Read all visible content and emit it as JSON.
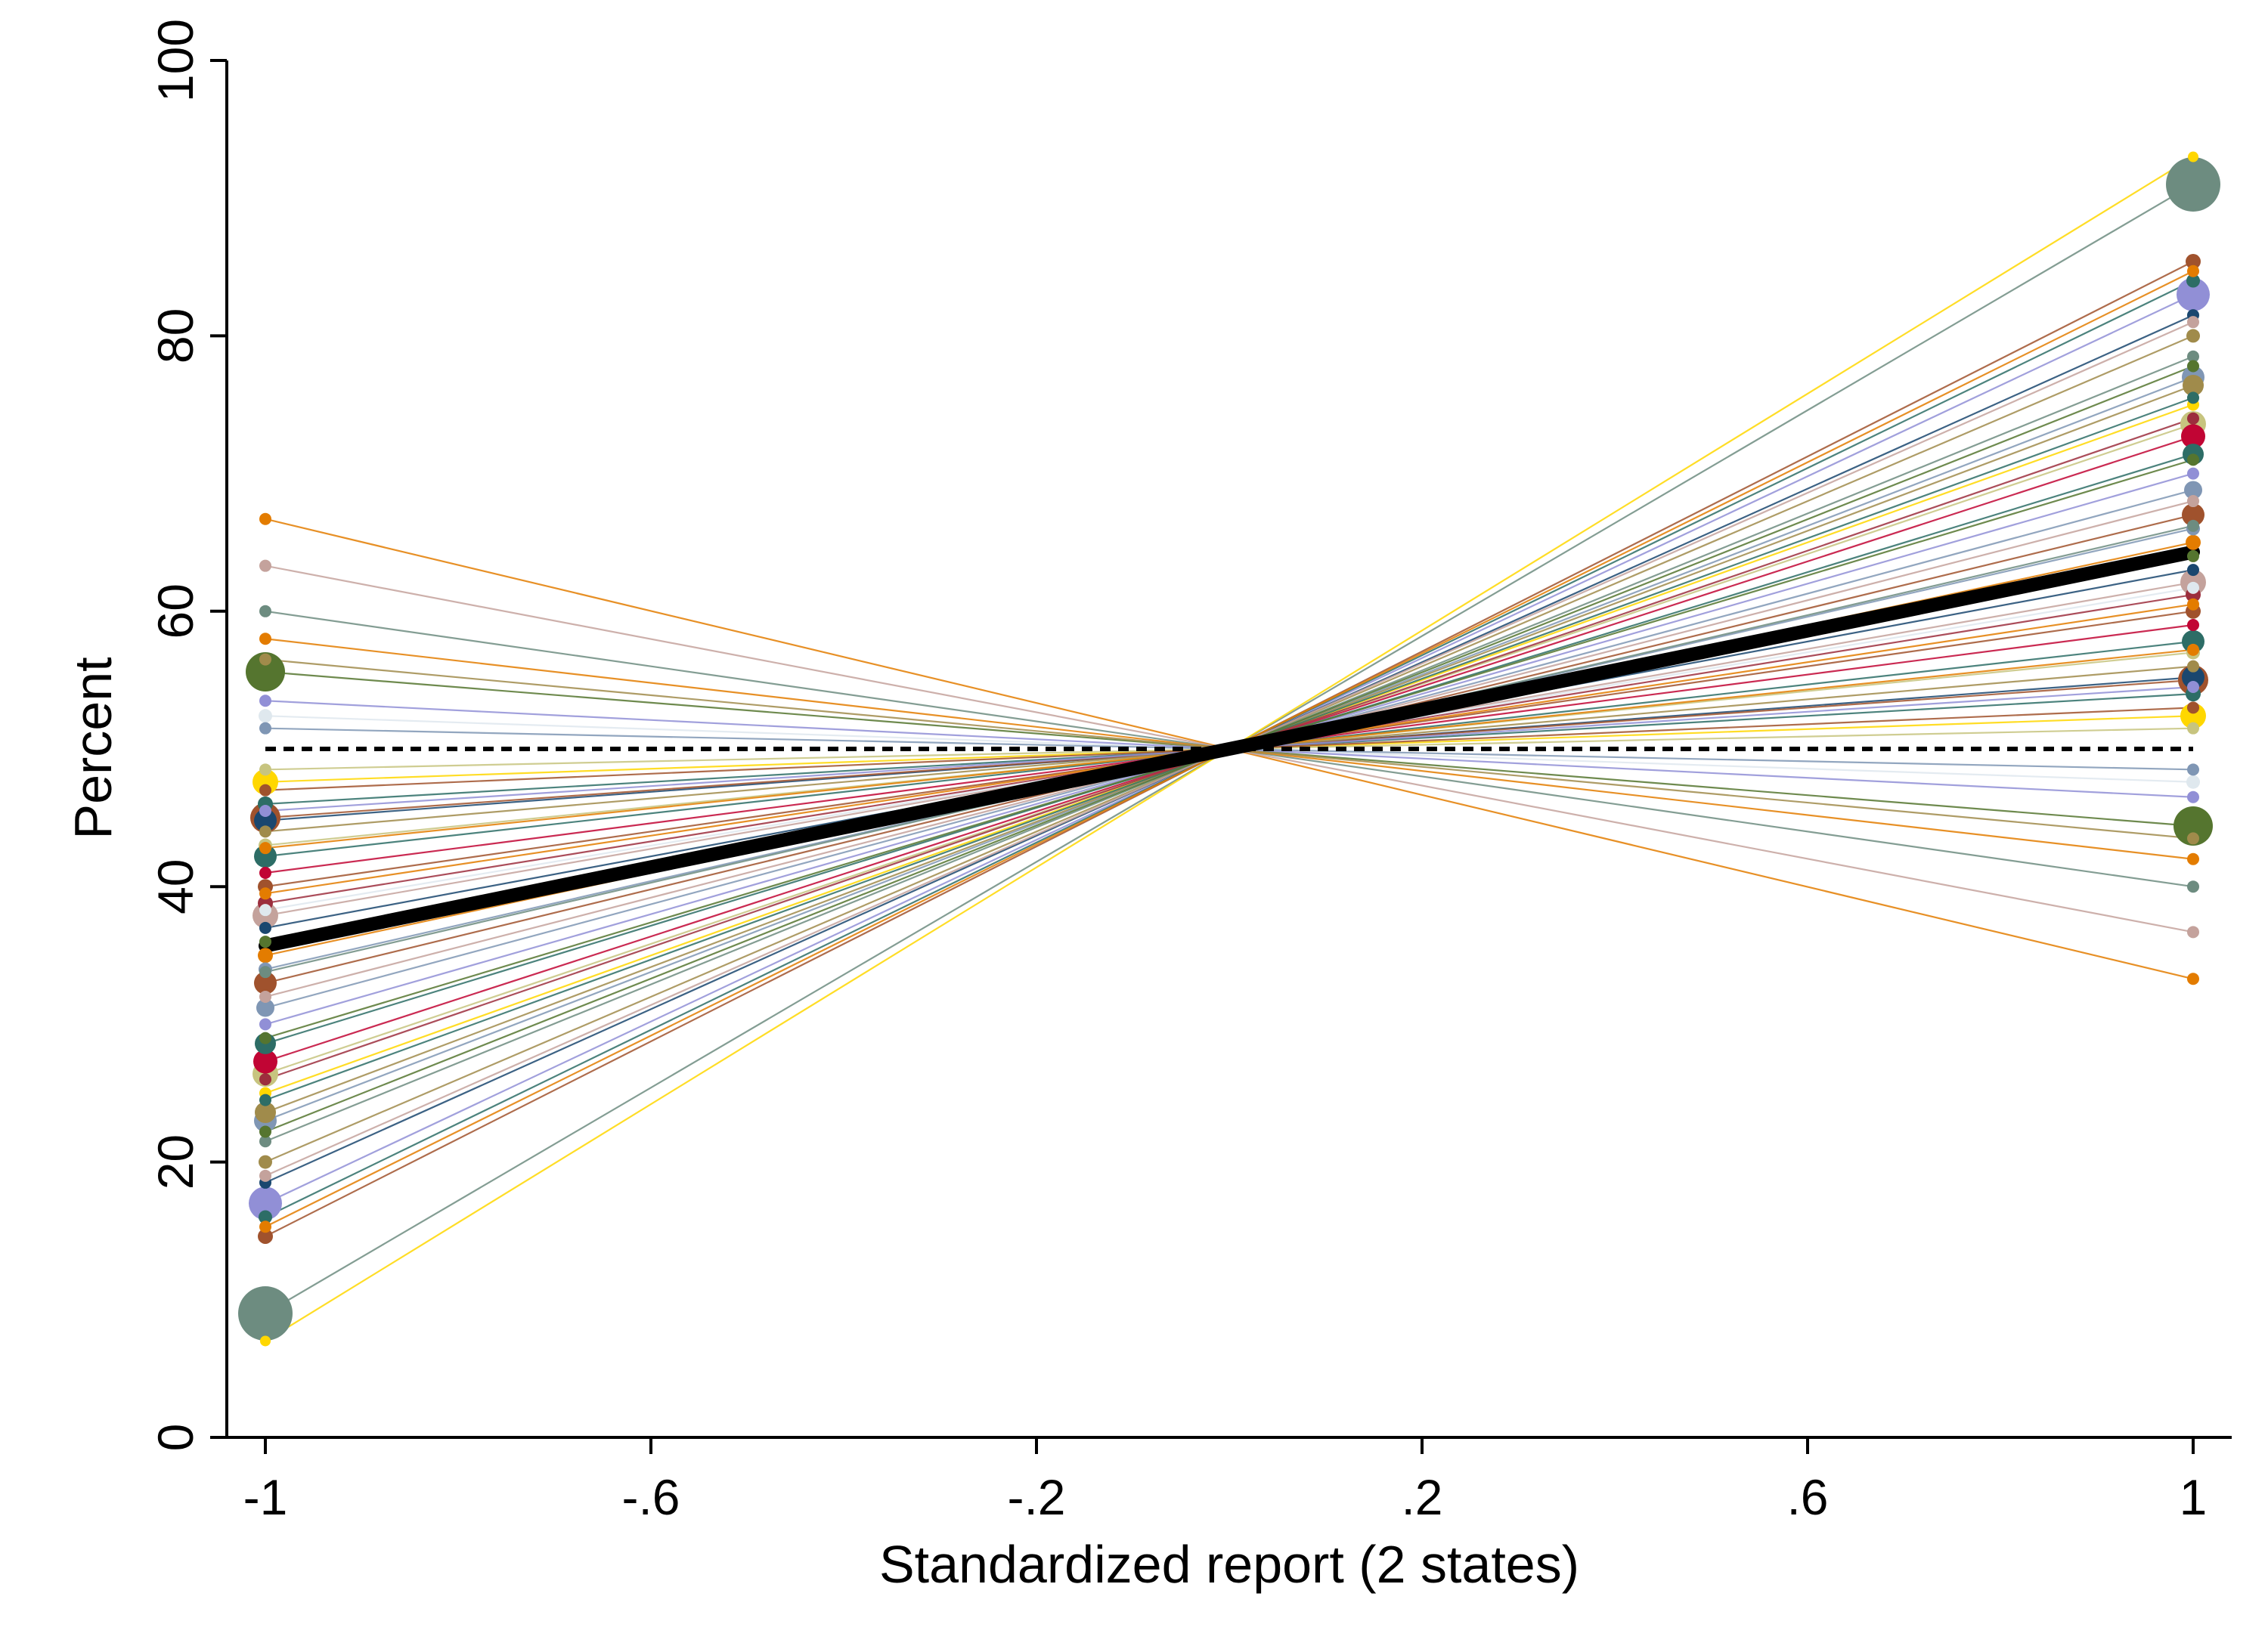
{
  "chart_data": {
    "type": "line",
    "title": "",
    "xlabel": "Standardized report (2 states)",
    "ylabel": "Percent",
    "xlim": [
      -1.04,
      1.04
    ],
    "ylim": [
      0,
      100
    ],
    "xticks": [
      -1,
      -0.6,
      -0.2,
      0.2,
      0.6,
      1
    ],
    "xtick_labels": [
      "-1",
      "-.6",
      "-.2",
      ".2",
      ".6",
      "1"
    ],
    "yticks": [
      0,
      20,
      40,
      60,
      80,
      100
    ],
    "ytick_labels": [
      "0",
      "20",
      "40",
      "60",
      "80",
      "100"
    ],
    "grid": false,
    "legend": "none",
    "x": [
      -1,
      1
    ],
    "reference_line": {
      "y": 50,
      "style": "dashed",
      "color": "#000000"
    },
    "mean_line": {
      "values": [
        35.7,
        64.3
      ],
      "color": "#000000"
    },
    "series": [
      {
        "values": [
          9.0,
          91.0
        ],
        "color": "#6d8c80",
        "size": 3.6
      },
      {
        "values": [
          55.6,
          44.4
        ],
        "color": "#55752f",
        "size": 2.6
      },
      {
        "values": [
          47.6,
          52.4
        ],
        "color": "#ffd700",
        "size": 1.7
      },
      {
        "values": [
          17.0,
          83.0
        ],
        "color": "#918fd6",
        "size": 2.2
      },
      {
        "values": [
          26.4,
          73.6
        ],
        "color": "#c7c47f",
        "size": 1.7
      },
      {
        "values": [
          27.3,
          72.7
        ],
        "color": "#c10534",
        "size": 1.6
      },
      {
        "values": [
          44.8,
          55.2
        ],
        "color": "#1a476f",
        "size": 1.5
      },
      {
        "values": [
          42.2,
          57.8
        ],
        "color": "#2d6d66",
        "size": 1.5
      },
      {
        "values": [
          45.0,
          55.0
        ],
        "color": "#a0522d",
        "size": 2.0
      },
      {
        "values": [
          37.9,
          62.1
        ],
        "color": "#c4a29c",
        "size": 1.7
      },
      {
        "values": [
          33.0,
          67.0
        ],
        "color": "#a0522d",
        "size": 1.5
      },
      {
        "values": [
          23.0,
          77.0
        ],
        "color": "#7f96b4",
        "size": 1.5
      },
      {
        "values": [
          23.6,
          76.4
        ],
        "color": "#a08b4b",
        "size": 1.4
      },
      {
        "values": [
          31.2,
          68.8
        ],
        "color": "#7f96b4",
        "size": 1.2
      },
      {
        "values": [
          28.6,
          71.4
        ],
        "color": "#2d6d66",
        "size": 1.4
      },
      {
        "values": [
          38.8,
          61.2
        ],
        "color": "#9c2e3d",
        "size": 1.0
      },
      {
        "values": [
          35.0,
          65.0
        ],
        "color": "#e37c00",
        "size": 1.0
      },
      {
        "values": [
          14.6,
          85.4
        ],
        "color": "#a0522d",
        "size": 1.0
      },
      {
        "values": [
          16.0,
          84.0
        ],
        "color": "#2d6d66",
        "size": 0.9
      },
      {
        "values": [
          20.0,
          80.0
        ],
        "color": "#a08b4b",
        "size": 0.9
      },
      {
        "values": [
          66.7,
          33.3
        ],
        "color": "#e37c00",
        "size": 0.8
      },
      {
        "values": [
          63.3,
          36.7
        ],
        "color": "#c4a29c",
        "size": 0.8
      },
      {
        "values": [
          60.0,
          40.0
        ],
        "color": "#6d8c80",
        "size": 0.8
      },
      {
        "values": [
          58.0,
          42.0
        ],
        "color": "#e37c00",
        "size": 0.8
      },
      {
        "values": [
          52.4,
          47.6
        ],
        "color": "#dfe8ee",
        "size": 0.9
      },
      {
        "values": [
          7.0,
          93.0
        ],
        "color": "#ffd700",
        "size": 0.7
      },
      {
        "values": [
          40.0,
          60.0
        ],
        "color": "#a0522d",
        "size": 1.0
      },
      {
        "values": [
          36.0,
          64.0
        ],
        "color": "#55752f",
        "size": 0.8
      },
      {
        "values": [
          46.0,
          54.0
        ],
        "color": "#2d6d66",
        "size": 1.0
      },
      {
        "values": [
          43.0,
          57.0
        ],
        "color": "#c7c47f",
        "size": 0.9
      },
      {
        "values": [
          30.0,
          70.0
        ],
        "color": "#918fd6",
        "size": 0.8
      },
      {
        "values": [
          25.0,
          75.0
        ],
        "color": "#ffd700",
        "size": 0.8
      },
      {
        "values": [
          18.5,
          81.5
        ],
        "color": "#1a476f",
        "size": 0.8
      },
      {
        "values": [
          21.5,
          78.5
        ],
        "color": "#6d8c80",
        "size": 0.8
      },
      {
        "values": [
          34.0,
          66.0
        ],
        "color": "#7f96b4",
        "size": 0.9
      },
      {
        "values": [
          41.0,
          59.0
        ],
        "color": "#c10534",
        "size": 0.8
      },
      {
        "values": [
          44.0,
          56.0
        ],
        "color": "#a08b4b",
        "size": 0.8
      },
      {
        "values": [
          39.5,
          60.5
        ],
        "color": "#e37c00",
        "size": 0.8
      },
      {
        "values": [
          32.0,
          68.0
        ],
        "color": "#c4a29c",
        "size": 0.8
      },
      {
        "values": [
          29.0,
          71.0
        ],
        "color": "#55752f",
        "size": 0.8
      },
      {
        "values": [
          48.5,
          51.5
        ],
        "color": "#c7c47f",
        "size": 0.8
      },
      {
        "values": [
          45.5,
          54.5
        ],
        "color": "#918fd6",
        "size": 0.8
      },
      {
        "values": [
          37.0,
          63.0
        ],
        "color": "#1a476f",
        "size": 0.8
      },
      {
        "values": [
          24.5,
          75.5
        ],
        "color": "#2d6d66",
        "size": 0.8
      },
      {
        "values": [
          19.0,
          81.0
        ],
        "color": "#c4a29c",
        "size": 0.8
      },
      {
        "values": [
          53.5,
          46.5
        ],
        "color": "#918fd6",
        "size": 0.8
      },
      {
        "values": [
          51.5,
          48.5
        ],
        "color": "#7f96b4",
        "size": 0.8
      },
      {
        "values": [
          56.5,
          43.5
        ],
        "color": "#a08b4b",
        "size": 0.8
      },
      {
        "values": [
          42.8,
          57.2
        ],
        "color": "#e37c00",
        "size": 0.8
      },
      {
        "values": [
          33.8,
          66.2
        ],
        "color": "#6d8c80",
        "size": 0.8
      },
      {
        "values": [
          22.2,
          77.8
        ],
        "color": "#55752f",
        "size": 0.8
      },
      {
        "values": [
          26.0,
          74.0
        ],
        "color": "#9c2e3d",
        "size": 0.8
      },
      {
        "values": [
          38.3,
          61.7
        ],
        "color": "#dfe8ee",
        "size": 0.8
      },
      {
        "values": [
          47.0,
          53.0
        ],
        "color": "#a0522d",
        "size": 0.8
      },
      {
        "values": [
          15.3,
          84.7
        ],
        "color": "#e37c00",
        "size": 0.8
      }
    ]
  }
}
